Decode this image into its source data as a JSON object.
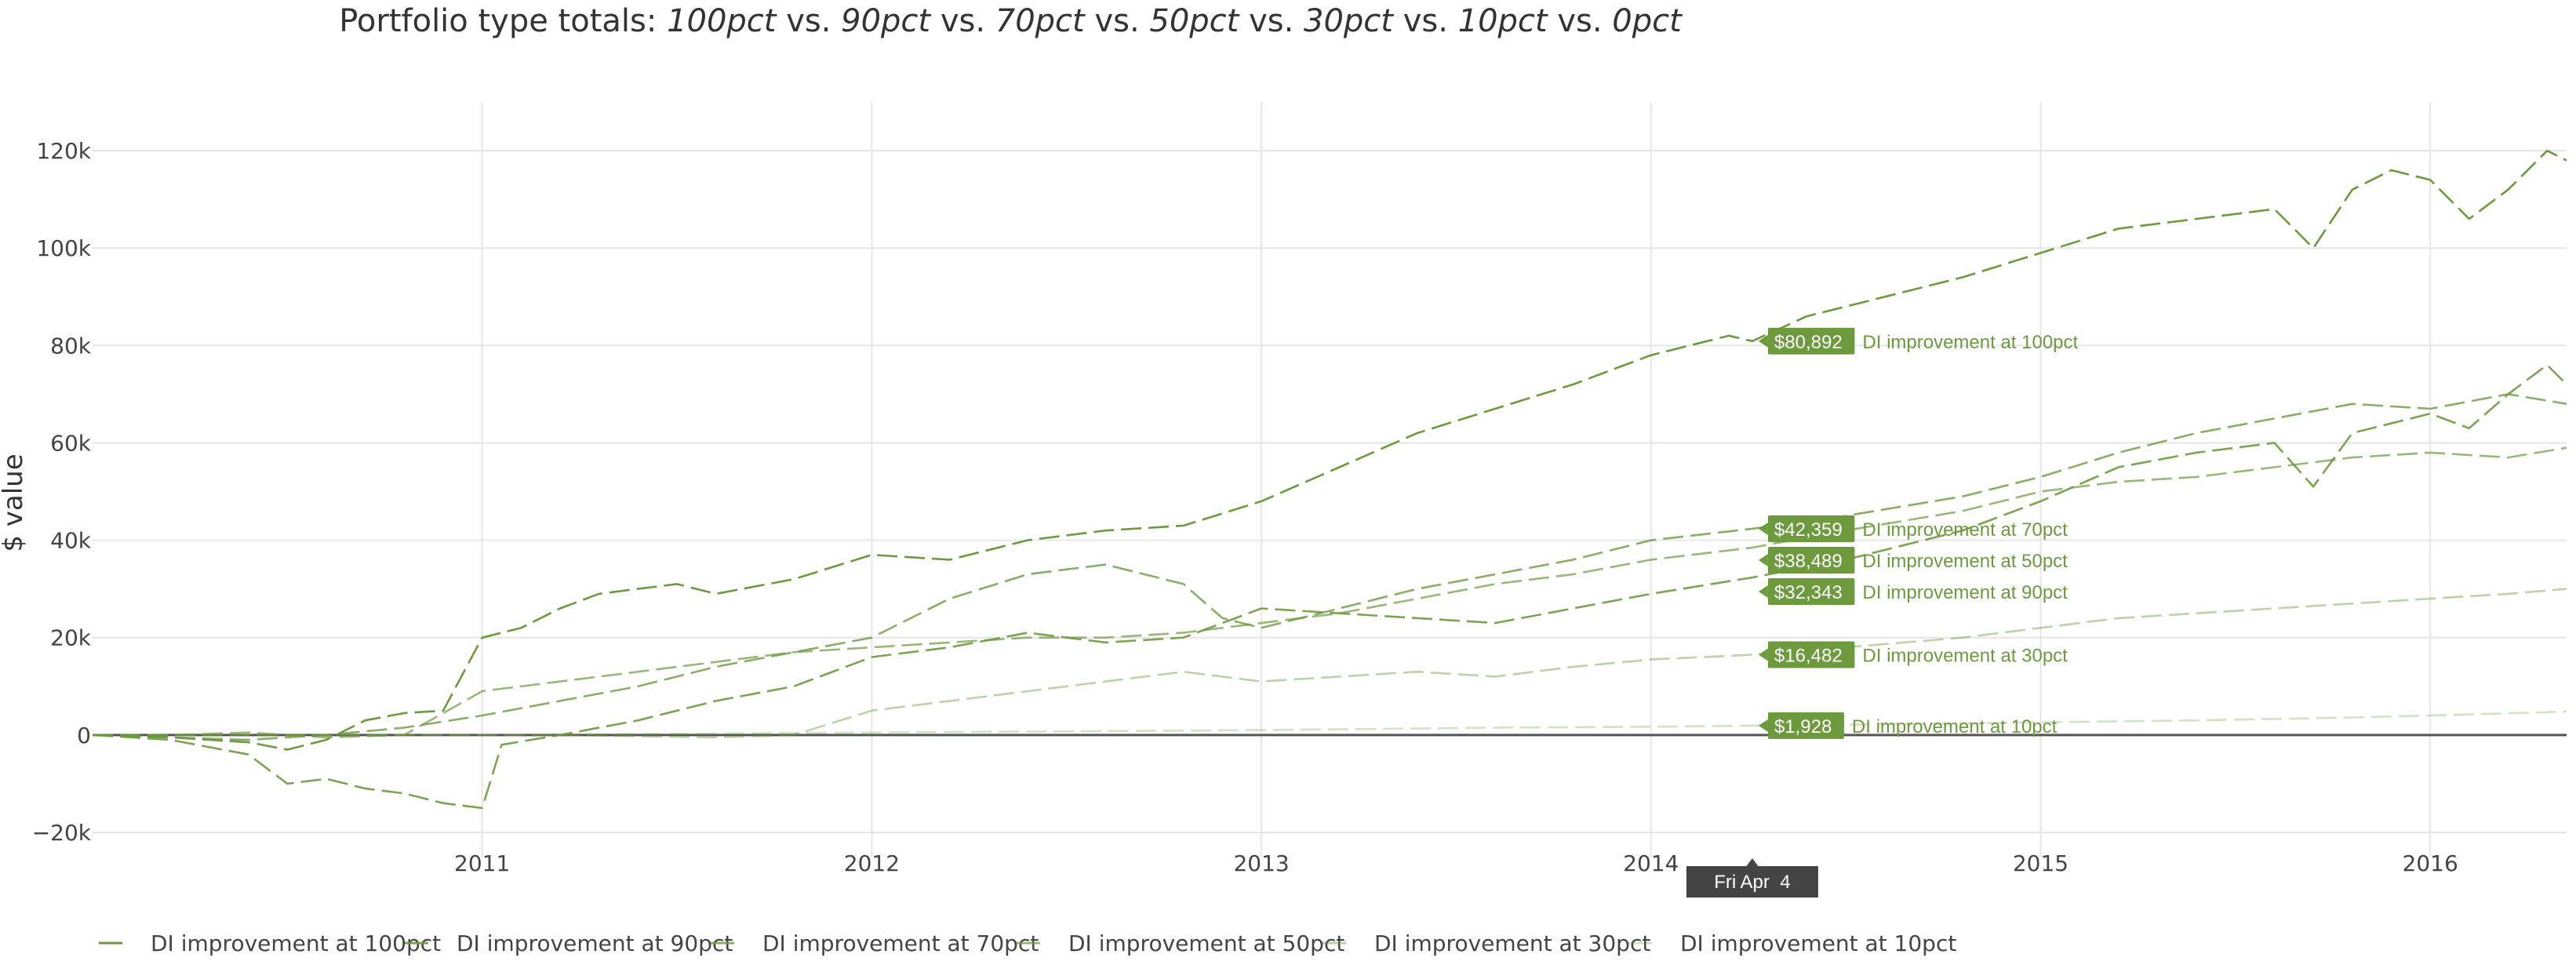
{
  "chart_data": {
    "type": "line",
    "title_parts": [
      {
        "text": "Portfolio type totals: ",
        "italic": false
      },
      {
        "text": "100pct",
        "italic": true
      },
      {
        "text": " vs. ",
        "italic": false
      },
      {
        "text": "90pct",
        "italic": true
      },
      {
        "text": " vs. ",
        "italic": false
      },
      {
        "text": "70pct",
        "italic": true
      },
      {
        "text": " vs. ",
        "italic": false
      },
      {
        "text": "50pct",
        "italic": true
      },
      {
        "text": " vs. ",
        "italic": false
      },
      {
        "text": "30pct",
        "italic": true
      },
      {
        "text": " vs. ",
        "italic": false
      },
      {
        "text": "10pct",
        "italic": true
      },
      {
        "text": " vs. ",
        "italic": false
      },
      {
        "text": "0pct",
        "italic": true
      }
    ],
    "ylabel": "$ value",
    "xlabel": "",
    "x_range": [
      2010.0,
      2016.35
    ],
    "ylim": [
      -25000,
      130000
    ],
    "y_ticks": [
      -20000,
      0,
      20000,
      40000,
      60000,
      80000,
      100000,
      120000
    ],
    "y_tick_labels": [
      "−20k",
      "0",
      "20k",
      "40k",
      "60k",
      "80k",
      "100k",
      "120k"
    ],
    "x_ticks": [
      2011,
      2012,
      2013,
      2014,
      2015,
      2016
    ],
    "x_tick_labels": [
      "2011",
      "2012",
      "2013",
      "2014",
      "2015",
      "2016"
    ],
    "grid": true,
    "legend_position": "bottom",
    "hover_date_label": "Fri Apr  4",
    "hover_x": 2014.26,
    "colors": {
      "line": "#6e9a3e",
      "tag_bg": "#6e9a3e",
      "date_bg": "#444444",
      "zero_line": "#555555",
      "grid": "#e6e6e6"
    },
    "series": [
      {
        "name": "DI improvement at 100pct",
        "opacity": 1.0,
        "tag_value": "$80,892",
        "points": [
          [
            2010.0,
            0
          ],
          [
            2010.2,
            -500
          ],
          [
            2010.4,
            -1500
          ],
          [
            2010.5,
            -3000
          ],
          [
            2010.6,
            -1000
          ],
          [
            2010.7,
            3000
          ],
          [
            2010.8,
            4500
          ],
          [
            2010.9,
            5000
          ],
          [
            2011.0,
            20000
          ],
          [
            2011.1,
            22000
          ],
          [
            2011.2,
            26000
          ],
          [
            2011.3,
            29000
          ],
          [
            2011.4,
            30000
          ],
          [
            2011.5,
            31000
          ],
          [
            2011.6,
            29000
          ],
          [
            2011.8,
            32000
          ],
          [
            2012.0,
            37000
          ],
          [
            2012.2,
            36000
          ],
          [
            2012.4,
            40000
          ],
          [
            2012.6,
            42000
          ],
          [
            2012.8,
            43000
          ],
          [
            2013.0,
            48000
          ],
          [
            2013.2,
            55000
          ],
          [
            2013.4,
            62000
          ],
          [
            2013.6,
            67000
          ],
          [
            2013.8,
            72000
          ],
          [
            2014.0,
            78000
          ],
          [
            2014.1,
            80000
          ],
          [
            2014.2,
            82000
          ],
          [
            2014.26,
            80892
          ],
          [
            2014.4,
            86000
          ],
          [
            2014.6,
            90000
          ],
          [
            2014.8,
            94000
          ],
          [
            2015.0,
            99000
          ],
          [
            2015.2,
            104000
          ],
          [
            2015.4,
            106000
          ],
          [
            2015.6,
            108000
          ],
          [
            2015.7,
            100000
          ],
          [
            2015.8,
            112000
          ],
          [
            2015.9,
            116000
          ],
          [
            2016.0,
            114000
          ],
          [
            2016.1,
            106000
          ],
          [
            2016.2,
            112000
          ],
          [
            2016.3,
            120000
          ],
          [
            2016.35,
            118000
          ]
        ]
      },
      {
        "name": "DI improvement at 90pct",
        "opacity": 0.9,
        "tag_value": "$32,343",
        "points": [
          [
            2010.0,
            0
          ],
          [
            2010.2,
            -1000
          ],
          [
            2010.4,
            -4000
          ],
          [
            2010.5,
            -10000
          ],
          [
            2010.6,
            -9000
          ],
          [
            2010.7,
            -11000
          ],
          [
            2010.8,
            -12000
          ],
          [
            2010.9,
            -14000
          ],
          [
            2011.0,
            -15000
          ],
          [
            2011.05,
            -2000
          ],
          [
            2011.2,
            0
          ],
          [
            2011.4,
            3000
          ],
          [
            2011.6,
            7000
          ],
          [
            2011.8,
            10000
          ],
          [
            2012.0,
            16000
          ],
          [
            2012.2,
            18000
          ],
          [
            2012.4,
            21000
          ],
          [
            2012.6,
            19000
          ],
          [
            2012.8,
            20000
          ],
          [
            2013.0,
            26000
          ],
          [
            2013.2,
            25000
          ],
          [
            2013.4,
            24000
          ],
          [
            2013.6,
            23000
          ],
          [
            2013.8,
            26000
          ],
          [
            2014.0,
            29000
          ],
          [
            2014.26,
            32343
          ],
          [
            2014.5,
            36000
          ],
          [
            2014.8,
            42000
          ],
          [
            2015.0,
            48000
          ],
          [
            2015.2,
            55000
          ],
          [
            2015.4,
            58000
          ],
          [
            2015.6,
            60000
          ],
          [
            2015.7,
            51000
          ],
          [
            2015.8,
            62000
          ],
          [
            2016.0,
            66000
          ],
          [
            2016.1,
            63000
          ],
          [
            2016.2,
            70000
          ],
          [
            2016.3,
            76000
          ],
          [
            2016.35,
            72000
          ]
        ]
      },
      {
        "name": "DI improvement at 70pct",
        "opacity": 0.8,
        "tag_value": "$42,359",
        "points": [
          [
            2010.0,
            0
          ],
          [
            2010.2,
            -500
          ],
          [
            2010.4,
            -1000
          ],
          [
            2010.6,
            0
          ],
          [
            2010.8,
            1500
          ],
          [
            2011.0,
            4000
          ],
          [
            2011.2,
            7000
          ],
          [
            2011.4,
            10000
          ],
          [
            2011.6,
            14000
          ],
          [
            2011.8,
            17000
          ],
          [
            2012.0,
            20000
          ],
          [
            2012.2,
            28000
          ],
          [
            2012.4,
            33000
          ],
          [
            2012.6,
            35000
          ],
          [
            2012.8,
            31000
          ],
          [
            2012.9,
            24000
          ],
          [
            2013.0,
            22000
          ],
          [
            2013.2,
            26000
          ],
          [
            2013.4,
            30000
          ],
          [
            2013.6,
            33000
          ],
          [
            2013.8,
            36000
          ],
          [
            2014.0,
            40000
          ],
          [
            2014.26,
            42359
          ],
          [
            2014.5,
            45000
          ],
          [
            2014.8,
            49000
          ],
          [
            2015.0,
            53000
          ],
          [
            2015.2,
            58000
          ],
          [
            2015.4,
            62000
          ],
          [
            2015.6,
            65000
          ],
          [
            2015.8,
            68000
          ],
          [
            2016.0,
            67000
          ],
          [
            2016.2,
            70000
          ],
          [
            2016.35,
            68000
          ]
        ]
      },
      {
        "name": "DI improvement at 50pct",
        "opacity": 0.7,
        "tag_value": "$38,489",
        "points": [
          [
            2010.0,
            0
          ],
          [
            2010.2,
            0
          ],
          [
            2010.4,
            500
          ],
          [
            2010.6,
            -500
          ],
          [
            2010.8,
            0
          ],
          [
            2011.0,
            9000
          ],
          [
            2011.2,
            11000
          ],
          [
            2011.4,
            13000
          ],
          [
            2011.6,
            15000
          ],
          [
            2011.8,
            17000
          ],
          [
            2012.0,
            18000
          ],
          [
            2012.2,
            19000
          ],
          [
            2012.4,
            20000
          ],
          [
            2012.6,
            20000
          ],
          [
            2012.8,
            21000
          ],
          [
            2013.0,
            23000
          ],
          [
            2013.2,
            25000
          ],
          [
            2013.4,
            28000
          ],
          [
            2013.6,
            31000
          ],
          [
            2013.8,
            33000
          ],
          [
            2014.0,
            36000
          ],
          [
            2014.26,
            38489
          ],
          [
            2014.5,
            42000
          ],
          [
            2014.8,
            46000
          ],
          [
            2015.0,
            50000
          ],
          [
            2015.2,
            52000
          ],
          [
            2015.4,
            53000
          ],
          [
            2015.6,
            55000
          ],
          [
            2015.8,
            57000
          ],
          [
            2016.0,
            58000
          ],
          [
            2016.2,
            57000
          ],
          [
            2016.35,
            59000
          ]
        ]
      },
      {
        "name": "DI improvement at 30pct",
        "opacity": 0.45,
        "tag_value": "$16,482",
        "points": [
          [
            2010.0,
            0
          ],
          [
            2010.4,
            0
          ],
          [
            2010.8,
            0
          ],
          [
            2011.2,
            0
          ],
          [
            2011.6,
            -500
          ],
          [
            2011.8,
            0
          ],
          [
            2012.0,
            5000
          ],
          [
            2012.2,
            7000
          ],
          [
            2012.4,
            9000
          ],
          [
            2012.6,
            11000
          ],
          [
            2012.8,
            13000
          ],
          [
            2013.0,
            11000
          ],
          [
            2013.2,
            12000
          ],
          [
            2013.4,
            13000
          ],
          [
            2013.6,
            12000
          ],
          [
            2013.8,
            14000
          ],
          [
            2014.0,
            15500
          ],
          [
            2014.26,
            16482
          ],
          [
            2014.5,
            18000
          ],
          [
            2014.8,
            20000
          ],
          [
            2015.0,
            22000
          ],
          [
            2015.2,
            24000
          ],
          [
            2015.4,
            25000
          ],
          [
            2015.6,
            26000
          ],
          [
            2015.8,
            27000
          ],
          [
            2016.0,
            28000
          ],
          [
            2016.2,
            29000
          ],
          [
            2016.35,
            30000
          ]
        ]
      },
      {
        "name": "DI improvement at 10pct",
        "opacity": 0.3,
        "tag_value": "$1,928",
        "points": [
          [
            2010.0,
            0
          ],
          [
            2011.0,
            0
          ],
          [
            2012.0,
            500
          ],
          [
            2012.6,
            800
          ],
          [
            2013.0,
            1000
          ],
          [
            2013.6,
            1500
          ],
          [
            2014.0,
            1700
          ],
          [
            2014.26,
            1928
          ],
          [
            2014.6,
            2200
          ],
          [
            2015.0,
            2600
          ],
          [
            2015.4,
            3000
          ],
          [
            2015.8,
            3600
          ],
          [
            2016.0,
            4000
          ],
          [
            2016.35,
            4800
          ]
        ]
      }
    ]
  }
}
